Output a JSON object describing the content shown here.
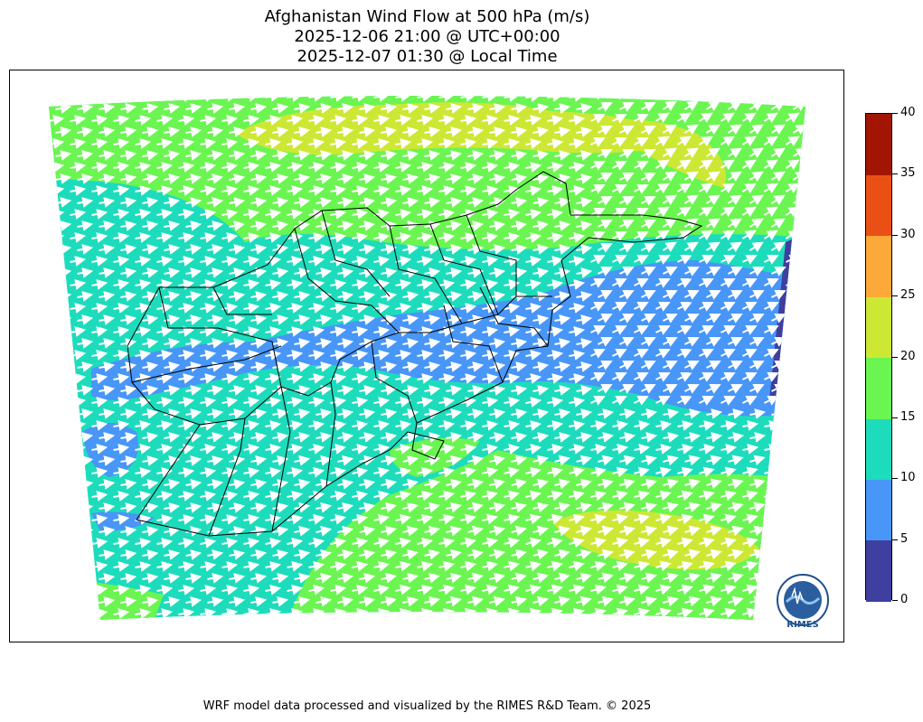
{
  "title": {
    "line1": "Afghanistan Wind Flow at 500 hPa (m/s)",
    "line2": "2025-12-06 21:00 @ UTC+00:00",
    "line3": "2025-12-07 01:30 @ Local Time"
  },
  "colorbar": {
    "ticks": [
      "0",
      "5",
      "10",
      "15",
      "20",
      "25",
      "30",
      "35",
      "40"
    ],
    "segments": [
      {
        "range": "0-5",
        "color": "#3f3f9f"
      },
      {
        "range": "5-10",
        "color": "#4896f8"
      },
      {
        "range": "10-15",
        "color": "#1ddcbc"
      },
      {
        "range": "15-20",
        "color": "#6bf551"
      },
      {
        "range": "20-25",
        "color": "#cde834"
      },
      {
        "range": "25-30",
        "color": "#fda93a"
      },
      {
        "range": "30-35",
        "color": "#ea5016"
      },
      {
        "range": "35-40",
        "color": "#a11502"
      }
    ]
  },
  "logo": {
    "text": "RIMES",
    "icon": "rimes-logo-icon"
  },
  "footer": "WRF model data processed and visualized by the RIMES R&D Team. © 2025"
}
